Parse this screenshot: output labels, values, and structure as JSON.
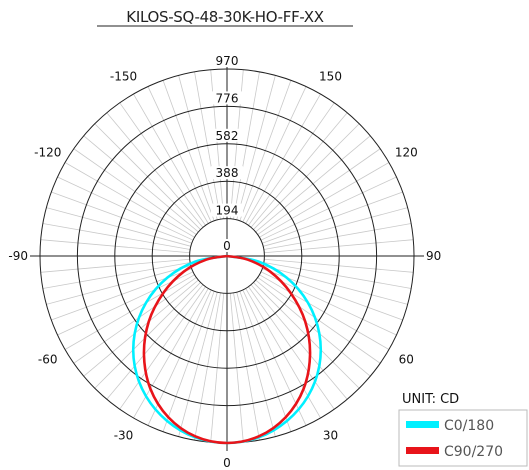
{
  "chart_data": {
    "type": "polar",
    "title": "KILOS-SQ-48-30K-HO-FF-XX",
    "unit_label": "UNIT: CD",
    "radial_ticks": [
      0,
      194,
      388,
      582,
      776,
      970
    ],
    "radial_max": 970,
    "angle_ticks": [
      {
        "angle": 0,
        "label": "0"
      },
      {
        "angle": 30,
        "label": "30"
      },
      {
        "angle": 60,
        "label": "60"
      },
      {
        "angle": 90,
        "label": "90"
      },
      {
        "angle": 120,
        "label": "120"
      },
      {
        "angle": 150,
        "label": "150"
      },
      {
        "angle": -30,
        "label": "-30"
      },
      {
        "angle": -60,
        "label": "-60"
      },
      {
        "angle": -90,
        "label": "-90"
      },
      {
        "angle": -120,
        "label": "-120"
      },
      {
        "angle": -150,
        "label": "-150"
      },
      {
        "angle": 180,
        "label": "970"
      }
    ],
    "grid": true,
    "legend_position": "bottom-right",
    "angles": [
      0,
      10,
      20,
      30,
      40,
      50,
      60,
      70,
      80,
      90
    ],
    "series": [
      {
        "name": "C0/180",
        "color": "#00f0ff",
        "values": [
          970,
          955,
          910,
          840,
          745,
          625,
          485,
          330,
          165,
          0
        ]
      },
      {
        "name": "C90/270",
        "color": "#e8141a",
        "values": [
          970,
          950,
          890,
          795,
          670,
          530,
          380,
          240,
          110,
          0
        ]
      }
    ]
  },
  "colors": {
    "grid_fine": "#c9c9c9",
    "grid_major": "#222222",
    "legend_border": "#bbbbbb"
  }
}
